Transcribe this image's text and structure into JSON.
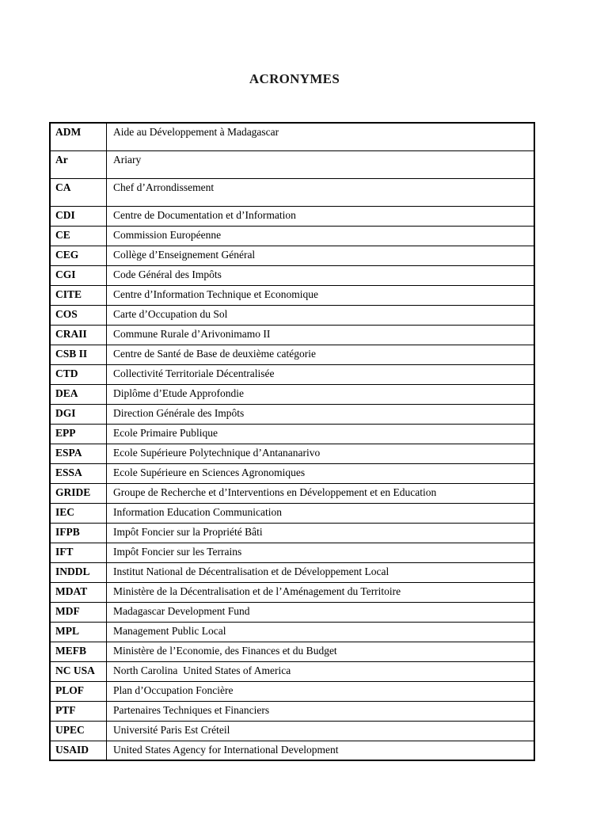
{
  "document": {
    "title": "ACRONYMES"
  },
  "table": {
    "columns": [
      "acronym",
      "definition"
    ],
    "rows": [
      {
        "acronym": "ADM",
        "definition": "Aide au Développement à Madagascar"
      },
      {
        "acronym": "Ar",
        "definition": "Ariary"
      },
      {
        "acronym": "CA",
        "definition": "Chef d’Arrondissement"
      },
      {
        "acronym": "CDI",
        "definition": "Centre de Documentation et d’Information"
      },
      {
        "acronym": "CE",
        "definition": "Commission Européenne"
      },
      {
        "acronym": "CEG",
        "definition": "Collège d’Enseignement Général"
      },
      {
        "acronym": "CGI",
        "definition": "Code Général des Impôts"
      },
      {
        "acronym": "CITE",
        "definition": "Centre d’Information Technique et Economique"
      },
      {
        "acronym": "COS",
        "definition": "Carte d’Occupation du Sol"
      },
      {
        "acronym": "CRAII",
        "definition": "Commune Rurale d’Arivonimamo II"
      },
      {
        "acronym": "CSB II",
        "definition": "Centre de Santé de Base de deuxième catégorie"
      },
      {
        "acronym": "CTD",
        "definition": "Collectivité Territoriale Décentralisée"
      },
      {
        "acronym": "DEA",
        "definition": "Diplôme d’Etude Approfondie"
      },
      {
        "acronym": "DGI",
        "definition": "Direction Générale des Impôts"
      },
      {
        "acronym": "EPP",
        "definition": "Ecole Primaire Publique"
      },
      {
        "acronym": "ESPA",
        "definition": "Ecole Supérieure Polytechnique d’Antananarivo"
      },
      {
        "acronym": "ESSA",
        "definition": "Ecole Supérieure en Sciences Agronomiques"
      },
      {
        "acronym": "GRIDE",
        "definition": "Groupe de Recherche et d’Interventions en Développement et en Education"
      },
      {
        "acronym": "IEC",
        "definition": "Information Education Communication"
      },
      {
        "acronym": "IFPB",
        "definition": "Impôt Foncier sur la Propriété Bâti"
      },
      {
        "acronym": "IFT",
        "definition": "Impôt Foncier sur les Terrains"
      },
      {
        "acronym": "INDDL",
        "definition": "Institut National de Décentralisation et de Développement Local"
      },
      {
        "acronym": "MDAT",
        "definition": "Ministère de la Décentralisation et de l’Aménagement du Territoire"
      },
      {
        "acronym": "MDF",
        "definition": "Madagascar Development Fund"
      },
      {
        "acronym": "MPL",
        "definition": "Management Public Local"
      },
      {
        "acronym": "MEFB",
        "definition": "Ministère de l’Economie, des Finances et du Budget"
      },
      {
        "acronym": "NC USA",
        "definition": "North Carolina  United States of America"
      },
      {
        "acronym": "PLOF",
        "definition": "Plan d’Occupation Foncière"
      },
      {
        "acronym": "PTF",
        "definition": "Partenaires Techniques et Financiers"
      },
      {
        "acronym": "UPEC",
        "definition": "Université Paris Est Créteil"
      },
      {
        "acronym": "USAID",
        "definition": "United States Agency for International Development"
      }
    ]
  }
}
